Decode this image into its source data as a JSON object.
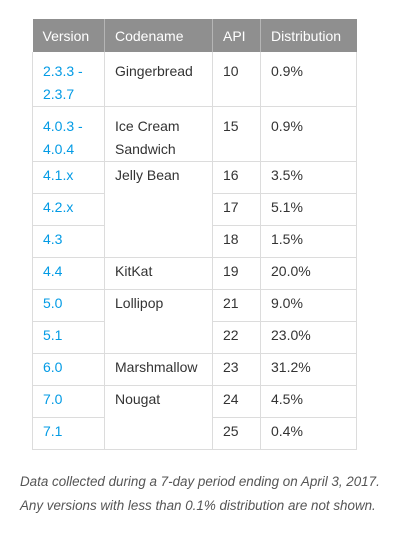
{
  "table": {
    "headers": [
      "Version",
      "Codename",
      "API",
      "Distribution"
    ],
    "rows": [
      {
        "version": "2.3.3 - 2.3.7",
        "codename": "Gingerbread",
        "api": "10",
        "distribution": "0.9%"
      },
      {
        "version": "4.0.3 - 4.0.4",
        "codename": "Ice Cream Sandwich",
        "api": "15",
        "distribution": "0.9%"
      },
      {
        "version": "4.1.x",
        "codename": "Jelly Bean",
        "api": "16",
        "distribution": "3.5%"
      },
      {
        "version": "4.2.x",
        "codename": "",
        "api": "17",
        "distribution": "5.1%"
      },
      {
        "version": "4.3",
        "codename": "",
        "api": "18",
        "distribution": "1.5%"
      },
      {
        "version": "4.4",
        "codename": "KitKat",
        "api": "19",
        "distribution": "20.0%"
      },
      {
        "version": "5.0",
        "codename": "Lollipop",
        "api": "21",
        "distribution": "9.0%"
      },
      {
        "version": "5.1",
        "codename": "",
        "api": "22",
        "distribution": "23.0%"
      },
      {
        "version": "6.0",
        "codename": "Marshmallow",
        "api": "23",
        "distribution": "31.2%"
      },
      {
        "version": "7.0",
        "codename": "Nougat",
        "api": "24",
        "distribution": "4.5%"
      },
      {
        "version": "7.1",
        "codename": "",
        "api": "25",
        "distribution": "0.4%"
      }
    ]
  },
  "footnote": {
    "line1": "Data collected during a 7-day period ending on April 3, 2017.",
    "line2": "Any versions with less than 0.1% distribution are not shown."
  },
  "colors": {
    "header_bg": "#8f8f8f",
    "link": "#039be5",
    "border": "#dcdcdc"
  }
}
